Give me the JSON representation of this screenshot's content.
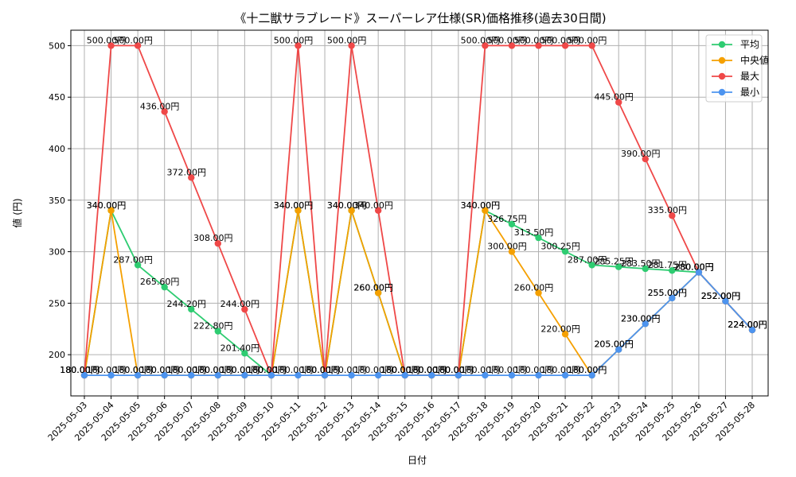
{
  "chart_data": {
    "type": "line",
    "title": "《十二獣サラブレード》スーパーレア仕様(SR)価格推移(過去30日間)",
    "xlabel": "日付",
    "ylabel": "値 (円)",
    "ylim": [
      160,
      515
    ],
    "yticks": [
      200,
      250,
      300,
      350,
      400,
      450,
      500
    ],
    "grid": true,
    "legend_position": "top-right",
    "value_suffix": "円",
    "categories": [
      "2025-05-03",
      "2025-05-04",
      "2025-05-05",
      "2025-05-06",
      "2025-05-07",
      "2025-05-08",
      "2025-05-09",
      "2025-05-10",
      "2025-05-11",
      "2025-05-12",
      "2025-05-13",
      "2025-05-14",
      "2025-05-15",
      "2025-05-16",
      "2025-05-17",
      "2025-05-18",
      "2025-05-19",
      "2025-05-20",
      "2025-05-21",
      "2025-05-22",
      "2025-05-23",
      "2025-05-24",
      "2025-05-25",
      "2025-05-26",
      "2025-05-27",
      "2025-05-28"
    ],
    "series": [
      {
        "name": "平均",
        "color": "#2ecc71",
        "values": [
          180,
          340,
          287,
          265.6,
          244.2,
          222.8,
          201.4,
          180,
          340,
          180,
          340,
          260,
          180,
          180,
          180,
          340,
          326.75,
          313.5,
          300.25,
          287,
          285.25,
          283.5,
          281.75,
          280,
          252,
          224
        ]
      },
      {
        "name": "中央値",
        "color": "#f5a000",
        "values": [
          180,
          340,
          180,
          180,
          180,
          180,
          180,
          180,
          340,
          180,
          340,
          260,
          180,
          180,
          180,
          340,
          300,
          260,
          220,
          180,
          205,
          230,
          255,
          280,
          252,
          224
        ]
      },
      {
        "name": "最大",
        "color": "#ef4848",
        "values": [
          180,
          500,
          500,
          436,
          372,
          308,
          244,
          180,
          500,
          180,
          500,
          340,
          180,
          180,
          180,
          500,
          500,
          500,
          500,
          500,
          445,
          390,
          335,
          280,
          252,
          224
        ]
      },
      {
        "name": "最小",
        "color": "#4d94ef",
        "values": [
          180,
          180,
          180,
          180,
          180,
          180,
          180,
          180,
          180,
          180,
          180,
          180,
          180,
          180,
          180,
          180,
          180,
          180,
          180,
          180,
          205,
          230,
          255,
          280,
          252,
          224
        ]
      }
    ]
  }
}
